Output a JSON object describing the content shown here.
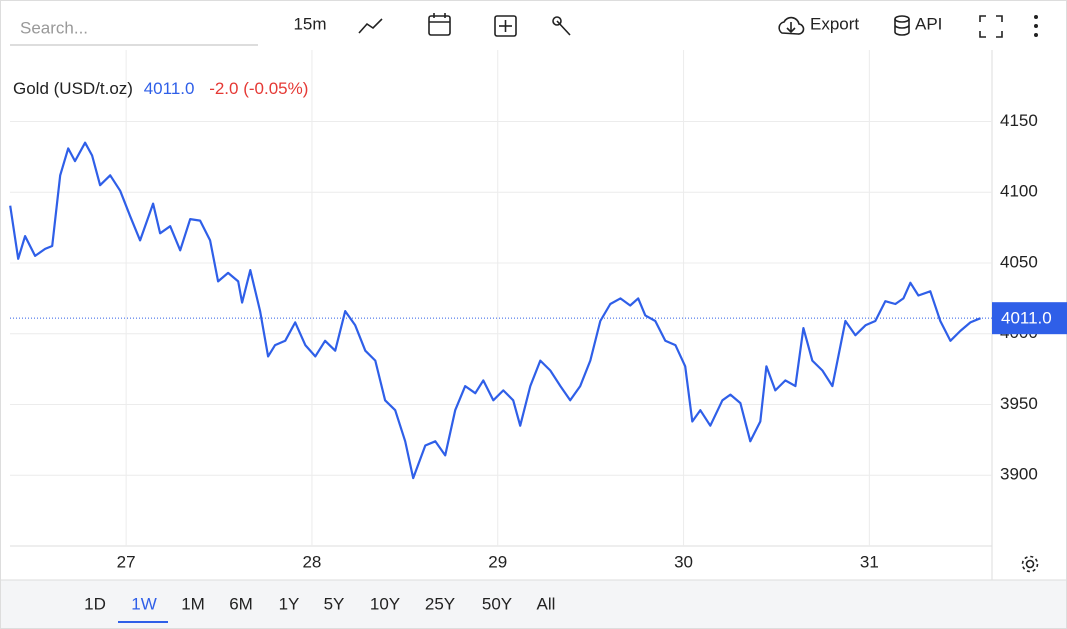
{
  "ui": {
    "search_placeholder": "Search...",
    "interval": "15m",
    "export": "Export",
    "api": "API",
    "ranges": [
      "1D",
      "1W",
      "1M",
      "6M",
      "1Y",
      "5Y",
      "10Y",
      "25Y",
      "50Y",
      "All"
    ],
    "selected_range": "1W"
  },
  "chart_data": {
    "type": "line",
    "change": "-2.0 (-0.05%)",
    "last_price": {
      "value": 4011,
      "label": "4011.0"
    },
    "x": [
      26.376,
      26.419,
      26.456,
      26.51,
      26.564,
      26.602,
      26.645,
      26.688,
      26.725,
      26.779,
      26.817,
      26.86,
      26.914,
      26.968,
      27.022,
      27.075,
      27.145,
      27.183,
      27.237,
      27.291,
      27.345,
      27.398,
      27.452,
      27.495,
      27.549,
      27.603,
      27.624,
      27.668,
      27.721,
      27.764,
      27.802,
      27.856,
      27.91,
      27.964,
      28.018,
      28.071,
      28.125,
      28.179,
      28.233,
      28.287,
      28.341,
      28.394,
      28.448,
      28.502,
      28.545,
      28.61,
      28.664,
      28.717,
      28.771,
      28.825,
      28.879,
      28.922,
      28.976,
      29.03,
      29.083,
      29.121,
      29.175,
      29.229,
      29.283,
      29.337,
      29.39,
      29.444,
      29.498,
      29.552,
      29.606,
      29.66,
      29.713,
      29.756,
      29.794,
      29.848,
      29.902,
      29.956,
      30.009,
      30.047,
      30.09,
      30.144,
      30.209,
      30.252,
      30.306,
      30.359,
      30.413,
      30.446,
      30.494,
      30.548,
      30.602,
      30.645,
      30.693,
      30.747,
      30.801,
      30.871,
      30.925,
      30.979,
      31.032,
      31.086,
      31.14,
      31.183,
      31.221,
      31.264,
      31.328,
      31.382,
      31.436,
      31.49,
      31.544,
      31.598
    ],
    "series": [
      {
        "name": "Gold (USD/t.oz)",
        "color": "#2f5fe8",
        "values": [
          4090.5,
          4053,
          4069,
          4055,
          4060,
          4062,
          4112,
          4131,
          4122,
          4135,
          4126,
          4105,
          4112,
          4101,
          4083,
          4066,
          4092,
          4071,
          4076,
          4059,
          4081,
          4080,
          4066,
          4037,
          4043,
          4037,
          4022,
          4045,
          4016,
          3984,
          3992,
          3995,
          4008,
          3992,
          3984,
          3995,
          3988,
          4016,
          4006,
          3988,
          3981,
          3953,
          3946,
          3924,
          3898,
          3921,
          3924,
          3914,
          3946,
          3963,
          3958,
          3967,
          3953,
          3960,
          3953,
          3935,
          3963,
          3981,
          3974,
          3963,
          3953,
          3963,
          3981,
          4009,
          4021,
          4025,
          4020,
          4025,
          4013,
          4009,
          3995,
          3992,
          3977,
          3938,
          3946,
          3935,
          3953,
          3957,
          3951,
          3924,
          3938,
          3977,
          3960,
          3967,
          3963,
          4004,
          3981,
          3974,
          3963,
          4009,
          3999,
          4006,
          4009,
          4023,
          4021,
          4025,
          4036,
          4027,
          4030,
          4009,
          3995,
          4002,
          4008,
          4011
        ]
      }
    ],
    "xlim": [
      26.375,
      31.66
    ],
    "xticks": [
      27,
      28,
      29,
      30,
      31
    ],
    "ylim": [
      3850,
      4197
    ],
    "yticks": [
      3900,
      3950,
      4000,
      4050,
      4100,
      4150
    ],
    "grid": true
  }
}
